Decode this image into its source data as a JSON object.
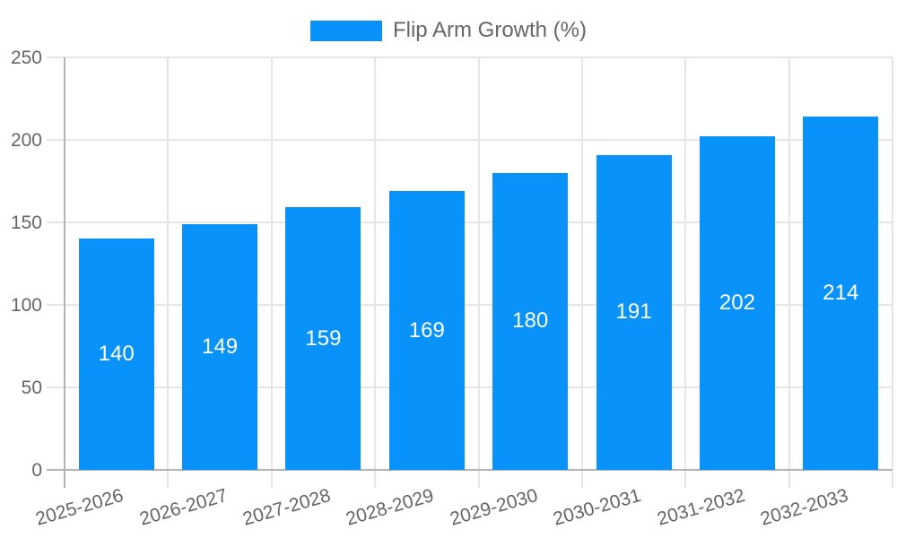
{
  "chart_data": {
    "type": "bar",
    "title": "Flip Arm Growth (%)",
    "categories": [
      "2025-2026",
      "2026-2027",
      "2027-2028",
      "2028-2029",
      "2029-2030",
      "2030-2031",
      "2031-2032",
      "2032-2033"
    ],
    "series": [
      {
        "name": "Flip Arm Growth (%)",
        "values": [
          140,
          149,
          159,
          169,
          180,
          191,
          202,
          214
        ]
      }
    ],
    "xlabel": "",
    "ylabel": "",
    "ylim": [
      0,
      250
    ],
    "yticks": [
      0,
      50,
      100,
      150,
      200,
      250
    ],
    "grid": true,
    "legend_position": "top",
    "x_label_rotation_deg": -16,
    "datalabel_position": "inside-center",
    "colors": {
      "bar": "#0892FA",
      "datalabel_text": "#FFFFFF",
      "tick_text": "#666666",
      "legend_text": "#666666",
      "gridline": "#E6E6E6",
      "axis_line": "#B3B3B3",
      "background": "#FFFFFF"
    }
  }
}
